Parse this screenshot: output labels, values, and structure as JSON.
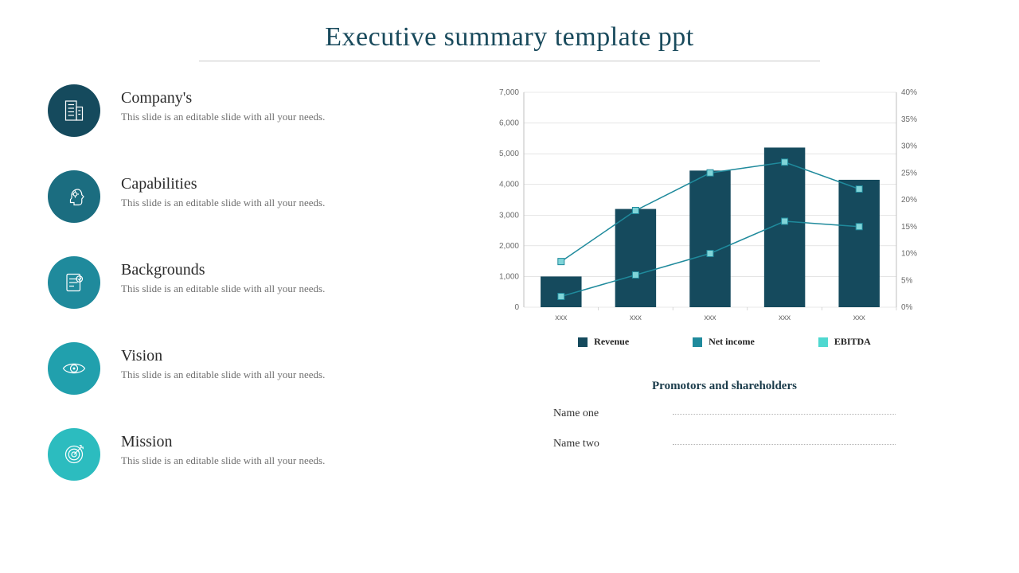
{
  "title": "Executive summary template ppt",
  "items": [
    {
      "heading": "Company's",
      "desc": "This slide is an editable slide with all your needs.",
      "color": "#154a5d"
    },
    {
      "heading": "Capabilities",
      "desc": "This slide is an editable slide with all your needs.",
      "color": "#1b6d80"
    },
    {
      "heading": "Backgrounds",
      "desc": "This slide is an editable slide with all your needs.",
      "color": "#1f8a9c"
    },
    {
      "heading": "Vision",
      "desc": "This slide is an editable slide with all your needs.",
      "color": "#21a0ad"
    },
    {
      "heading": "Mission",
      "desc": "This slide is an editable slide with all your needs.",
      "color": "#2cbcbf"
    }
  ],
  "chart": {
    "type": "combo-bar-line",
    "categories": [
      "xxx",
      "xxx",
      "xxx",
      "xxx",
      "xxx"
    ],
    "bar_values": [
      1000,
      3200,
      4450,
      5200,
      4150
    ],
    "line1_values_pct": [
      8.5,
      18,
      25,
      27,
      22
    ],
    "line2_values_pct": [
      2,
      6,
      10,
      16,
      15
    ],
    "y_left": {
      "min": 0,
      "max": 7000,
      "step": 1000
    },
    "y_right": {
      "min": 0,
      "max": 40,
      "step": 5,
      "suffix": "%"
    },
    "bar_color": "#154a5d",
    "line1_color": "#1f8a9c",
    "line1_marker_fill": "#7fd4d8",
    "line2_color": "#1f8a9c",
    "line2_marker_fill": "#7fd4d8",
    "grid_color": "#d6d6d6",
    "axis_color": "#bfbfbf",
    "background": "#ffffff",
    "bar_width_ratio": 0.55,
    "label_fontsize": 10,
    "legend": [
      {
        "label": "Revenue",
        "color": "#154a5d"
      },
      {
        "label": "Net income",
        "color": "#1f8a9c"
      },
      {
        "label": "EBITDA",
        "color": "#4fd8d0"
      }
    ]
  },
  "promoters": {
    "title": "Promotors and shareholders",
    "rows": [
      "Name one",
      "Name two"
    ]
  }
}
